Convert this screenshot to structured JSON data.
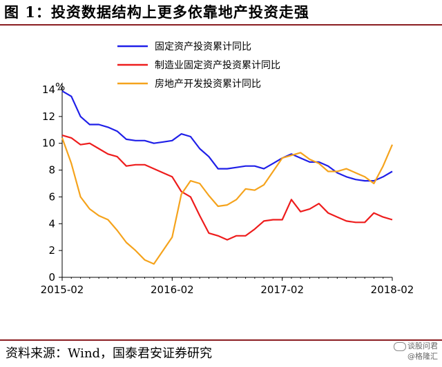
{
  "header": {
    "title": "图 1：投资数据结构上更多依靠地产投资走强"
  },
  "footer": {
    "source": "资料来源：Wind，国泰君安证券研究",
    "watermark_line1": "谈股问君",
    "watermark_line2": "@格隆汇"
  },
  "chart_data": {
    "type": "line",
    "unit_label": "%",
    "ylim": [
      0,
      14
    ],
    "yticks": [
      0,
      2,
      4,
      6,
      8,
      10,
      12,
      14
    ],
    "xtick_labels": [
      "2015-02",
      "2016-02",
      "2017-02",
      "2018-02"
    ],
    "x": [
      "2015-02",
      "2015-03",
      "2015-04",
      "2015-05",
      "2015-06",
      "2015-07",
      "2015-08",
      "2015-09",
      "2015-10",
      "2015-11",
      "2015-12",
      "2016-01",
      "2016-02",
      "2016-03",
      "2016-04",
      "2016-05",
      "2016-06",
      "2016-07",
      "2016-08",
      "2016-09",
      "2016-10",
      "2016-11",
      "2016-12",
      "2017-01",
      "2017-02",
      "2017-03",
      "2017-04",
      "2017-05",
      "2017-06",
      "2017-07",
      "2017-08",
      "2017-09",
      "2017-10",
      "2017-11",
      "2017-12",
      "2018-01",
      "2018-02"
    ],
    "grid": false,
    "legend_position": "top",
    "series": [
      {
        "name": "固定资产投资累计同比",
        "color": "#1f1fe8",
        "values": [
          13.9,
          13.5,
          12.0,
          11.4,
          11.4,
          11.2,
          10.9,
          10.3,
          10.2,
          10.2,
          10.0,
          10.1,
          10.2,
          10.7,
          10.5,
          9.6,
          9.0,
          8.1,
          8.1,
          8.2,
          8.3,
          8.3,
          8.1,
          8.5,
          8.9,
          9.2,
          8.9,
          8.6,
          8.6,
          8.3,
          7.8,
          7.5,
          7.3,
          7.2,
          7.2,
          7.5,
          7.9
        ]
      },
      {
        "name": "制造业固定资产投资累计同比",
        "color": "#ee1c1c",
        "values": [
          10.6,
          10.4,
          9.9,
          10.0,
          9.6,
          9.2,
          9.0,
          8.3,
          8.4,
          8.4,
          8.1,
          7.8,
          7.5,
          6.4,
          6.0,
          4.6,
          3.3,
          3.1,
          2.8,
          3.1,
          3.1,
          3.6,
          4.2,
          4.3,
          4.3,
          5.8,
          4.9,
          5.1,
          5.5,
          4.8,
          4.5,
          4.2,
          4.1,
          4.1,
          4.8,
          4.5,
          4.3
        ]
      },
      {
        "name": "房地产开发投资累计同比",
        "color": "#f5a31c",
        "values": [
          10.4,
          8.5,
          6.0,
          5.1,
          4.6,
          4.3,
          3.5,
          2.6,
          2.0,
          1.3,
          1.0,
          2.0,
          3.0,
          6.2,
          7.2,
          7.0,
          6.1,
          5.3,
          5.4,
          5.8,
          6.6,
          6.5,
          6.9,
          7.9,
          8.9,
          9.1,
          9.3,
          8.8,
          8.5,
          7.9,
          7.9,
          8.1,
          7.8,
          7.5,
          7.0,
          8.3,
          9.9
        ]
      }
    ]
  }
}
